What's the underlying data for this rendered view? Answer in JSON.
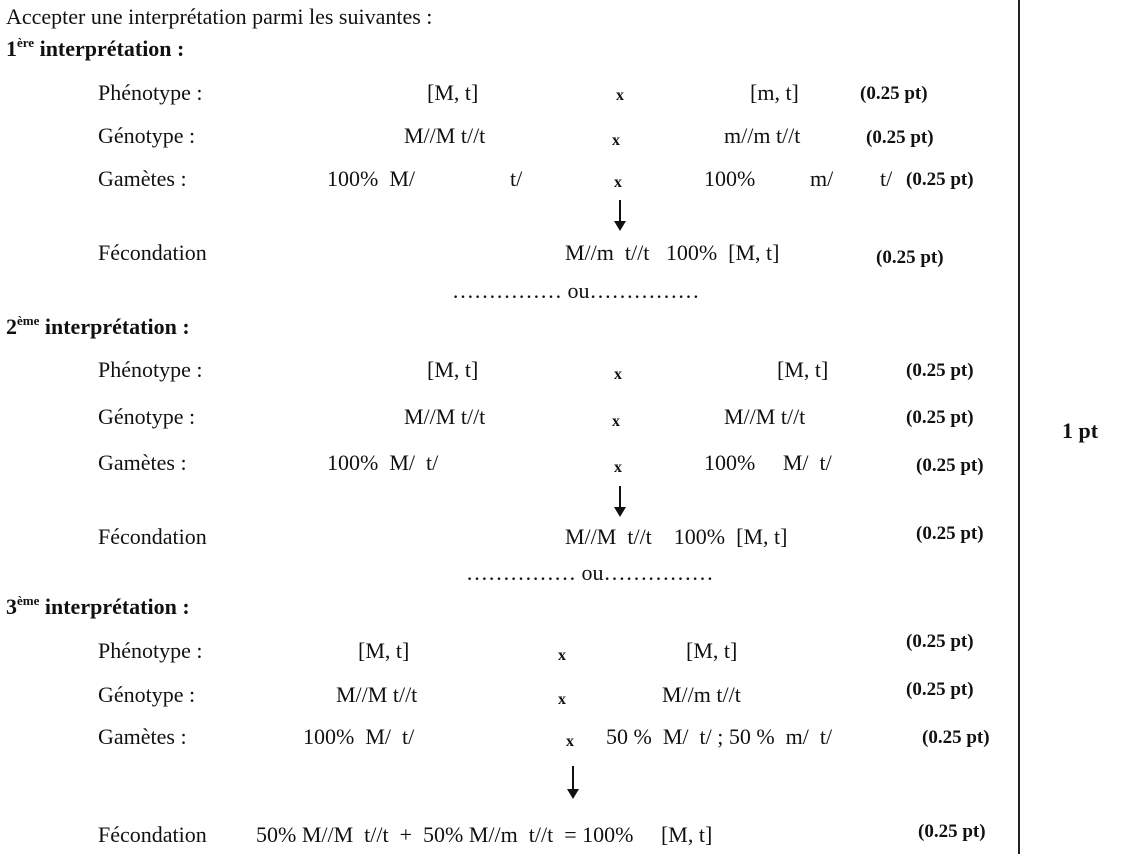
{
  "intro": "Accepter une interprétation parmi les suivantes :",
  "interp1": {
    "num": "1",
    "sup": "ère",
    "label": " interprétation :",
    "phenotype": {
      "label": "Phénotype :",
      "p1": "[M, t]",
      "x": "x",
      "p2": "[m, t]",
      "pt": "(0.25 pt)"
    },
    "genotype": {
      "label": "Génotype :",
      "g1": "M//M t//t",
      "x": "x",
      "g2": "m//m t//t",
      "pt": "(0.25 pt)"
    },
    "gametes": {
      "label": "Gamètes :",
      "g1a": "100%  M/",
      "g1b": "t/",
      "x": "x",
      "g2a": "100%",
      "g2b": "m/",
      "g2c": "t/",
      "pt": "(0.25 pt)"
    },
    "fecondation": {
      "label": "Fécondation",
      "result": "M//m  t//t   100%  [M, t]",
      "pt": "(0.25 pt)"
    },
    "ou": "…………… ou……………"
  },
  "interp2": {
    "num": "2",
    "sup": "ème",
    "label": " interprétation :",
    "phenotype": {
      "label": "Phénotype :",
      "p1": "[M, t]",
      "x": "x",
      "p2": "[M, t]",
      "pt": "(0.25 pt)"
    },
    "genotype": {
      "label": "Génotype :",
      "g1": "M//M t//t",
      "x": "x",
      "g2": "M//M t//t",
      "pt": "(0.25 pt)"
    },
    "gametes": {
      "label": "Gamètes :",
      "g1": "100%  M/  t/",
      "x": "x",
      "g2": "100%     M/  t/",
      "pt": "(0.25 pt)"
    },
    "fecondation": {
      "label": "Fécondation",
      "result": "M//M  t//t    100%  [M, t]",
      "pt": "(0.25 pt)"
    },
    "ou": "…………… ou……………"
  },
  "interp3": {
    "num": "3",
    "sup": "ème",
    "label": " interprétation :",
    "phenotype": {
      "label": "Phénotype :",
      "p1": "[M, t]",
      "x": "x",
      "p2": "[M, t]",
      "pt": "(0.25 pt)"
    },
    "genotype": {
      "label": "Génotype :",
      "g1": "M//M t//t",
      "x": "x",
      "g2": "M//m t//t",
      "pt": "(0.25 pt)"
    },
    "gametes": {
      "label": "Gamètes :",
      "g1": "100%  M/  t/",
      "x": "x",
      "g2": "50 %  M/  t/ ; 50 %  m/  t/",
      "pt": "(0.25 pt)"
    },
    "fecondation": {
      "label": "Fécondation",
      "result": "50% M//M  t//t  +  50% M//m  t//t  = 100%     [M, t]",
      "pt": "(0.25 pt)"
    }
  },
  "score": "1 pt"
}
